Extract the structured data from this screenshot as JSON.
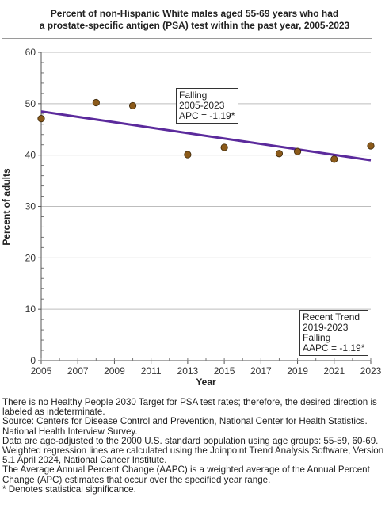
{
  "title_lines": [
    "Percent of non-Hispanic White males aged 55-69 years who had",
    "a prostate-specific antigen (PSA) test within the past year, 2005-2023"
  ],
  "chart_data": {
    "type": "scatter",
    "xlabel": "Year",
    "ylabel": "Percent of adults",
    "xlim": [
      2005,
      2023
    ],
    "ylim": [
      0,
      60
    ],
    "x_ticks": [
      2005,
      2007,
      2009,
      2011,
      2013,
      2015,
      2017,
      2019,
      2021,
      2023
    ],
    "y_ticks": [
      0,
      10,
      20,
      30,
      40,
      50,
      60
    ],
    "grid": "horizontal",
    "point_color": "#8b5a1a",
    "trend_color": "#5b2a9c",
    "series": [
      {
        "points": [
          {
            "x": 2005,
            "y": 47.1
          },
          {
            "x": 2008,
            "y": 50.2
          },
          {
            "x": 2010,
            "y": 49.6
          },
          {
            "x": 2013,
            "y": 40.1
          },
          {
            "x": 2015,
            "y": 41.5
          },
          {
            "x": 2018,
            "y": 40.3
          },
          {
            "x": 2019,
            "y": 40.7
          },
          {
            "x": 2021,
            "y": 39.2
          },
          {
            "x": 2023,
            "y": 41.8
          }
        ]
      }
    ],
    "trend_line": {
      "x": [
        2005,
        2023
      ],
      "y": [
        48.5,
        39.0
      ]
    },
    "annotations": [
      {
        "lines": [
          "Falling",
          "2005-2023",
          "APC = -1.19*"
        ]
      },
      {
        "lines": [
          "Recent Trend",
          "2019-2023",
          "Falling",
          "AAPC = -1.19*"
        ]
      }
    ]
  },
  "notes": [
    "There is no Healthy People 2030 Target for PSA test rates; therefore, the desired direction is labeled as indeterminate.",
    "Source: Centers for Disease Control and Prevention, National Center for Health Statistics. National Health Interview Survey.",
    "Data are age-adjusted to the 2000 U.S. standard population using age groups: 55-59, 60-69.",
    "Weighted regression lines are calculated using the Joinpoint Trend Analysis Software, Version 5.1 April 2024, National Cancer Institute.",
    "The Average Annual Percent Change (AAPC) is a weighted average of the Annual Percent Change (APC) estimates that occur over the specified year range.",
    "* Denotes statistical significance."
  ]
}
